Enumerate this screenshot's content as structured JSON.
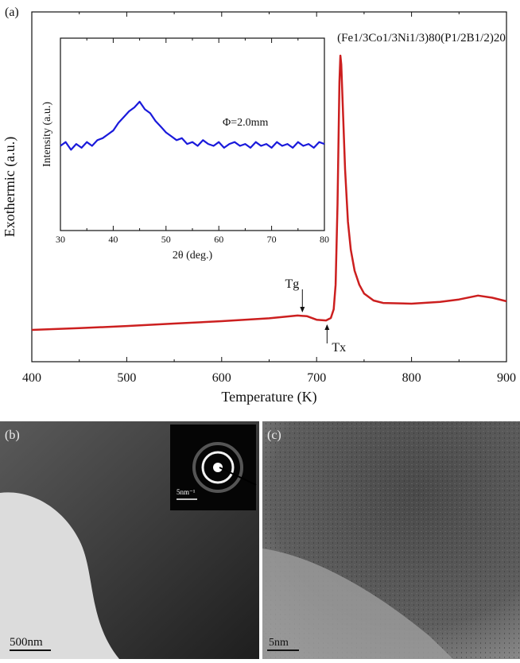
{
  "chart_data": [
    {
      "type": "line",
      "panel_label": "(a)",
      "title": "(Fe1/3Co1/3Ni1/3)80(P1/2B1/2)20",
      "xlabel": "Temperature (K)",
      "ylabel": "Exothermic (a.u.)",
      "xlim": [
        400,
        900
      ],
      "xticks": [
        400,
        500,
        600,
        700,
        800,
        900
      ],
      "ylim": [
        0,
        100
      ],
      "annotations": [
        {
          "text": "Tg",
          "x": 685
        },
        {
          "text": "Tx",
          "x": 711
        }
      ],
      "series": [
        {
          "color": "#cc1f1f",
          "x": [
            400,
            450,
            500,
            550,
            600,
            650,
            680,
            690,
            700,
            710,
            715,
            718,
            720,
            722,
            724,
            725,
            726,
            728,
            730,
            733,
            736,
            740,
            745,
            750,
            760,
            770,
            800,
            830,
            850,
            870,
            885,
            900
          ],
          "values": [
            9.1,
            9.6,
            10.2,
            10.9,
            11.6,
            12.4,
            13.2,
            13.0,
            12.0,
            11.8,
            12.5,
            15,
            22,
            45,
            80,
            87.5,
            85,
            70,
            55,
            40,
            32,
            26,
            22,
            19.5,
            17.5,
            16.8,
            16.6,
            17.1,
            17.8,
            18.9,
            18.3,
            17.3
          ]
        }
      ]
    },
    {
      "type": "line",
      "xlabel": "2θ (deg.)",
      "ylabel": "Intensity (a.u.)",
      "annotation": "Φ=2.0mm",
      "xlim": [
        30,
        80
      ],
      "xticks": [
        30,
        40,
        50,
        60,
        70,
        80
      ],
      "ylim": [
        0,
        100
      ],
      "series": [
        {
          "color": "#1a1adb",
          "x": [
            30,
            31,
            32,
            33,
            34,
            35,
            36,
            37,
            38,
            39,
            40,
            41,
            42,
            43,
            44,
            45,
            46,
            47,
            48,
            49,
            50,
            51,
            52,
            53,
            54,
            55,
            56,
            57,
            58,
            59,
            60,
            61,
            62,
            63,
            64,
            65,
            66,
            67,
            68,
            69,
            70,
            71,
            72,
            73,
            74,
            75,
            76,
            77,
            78,
            79,
            80
          ],
          "values": [
            44,
            46,
            42,
            45,
            43,
            46,
            44,
            47,
            48,
            50,
            52,
            56,
            59,
            62,
            64,
            67,
            63,
            61,
            57,
            54,
            51,
            49,
            47,
            48,
            45,
            46,
            44,
            47,
            45,
            44,
            46,
            43,
            45,
            46,
            44,
            45,
            43,
            46,
            44,
            45,
            43,
            46,
            44,
            45,
            43,
            46,
            44,
            45,
            43,
            46,
            45
          ]
        }
      ]
    }
  ],
  "panels": {
    "b": {
      "label": "(b)",
      "inset_scale": "5nm⁻¹",
      "scale": "500nm"
    },
    "c": {
      "label": "(c)",
      "scale": "5nm"
    }
  }
}
